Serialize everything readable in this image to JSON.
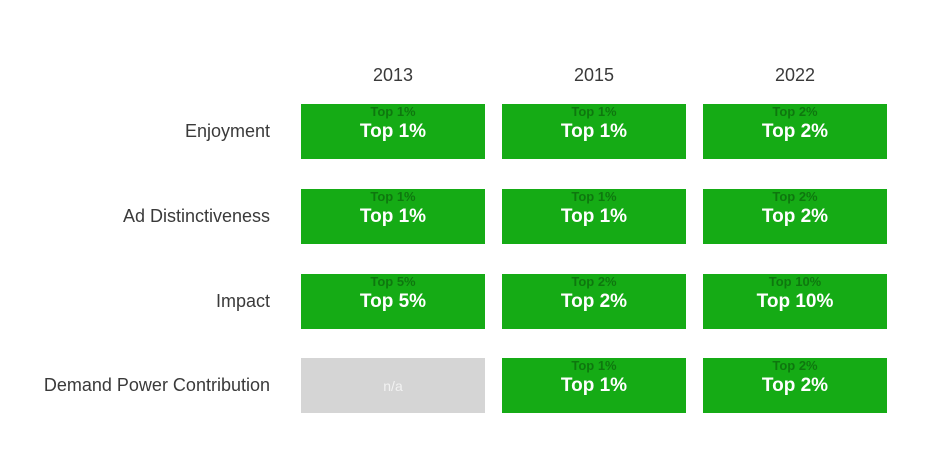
{
  "chart_data": {
    "type": "table",
    "title": "",
    "columns": [
      "2013",
      "2015",
      "2022"
    ],
    "rows": [
      {
        "label": "Enjoyment",
        "values": [
          "Top 1%",
          "Top 1%",
          "Top 2%"
        ],
        "statuses": [
          "green",
          "green",
          "green"
        ]
      },
      {
        "label": "Ad Distinctiveness",
        "values": [
          "Top 1%",
          "Top 1%",
          "Top 2%"
        ],
        "statuses": [
          "green",
          "green",
          "green"
        ]
      },
      {
        "label": "Impact",
        "values": [
          "Top 5%",
          "Top 2%",
          "Top 10%"
        ],
        "statuses": [
          "green",
          "green",
          "green"
        ]
      },
      {
        "label": "Demand Power Contribution",
        "values": [
          "n/a",
          "Top 1%",
          "Top 2%"
        ],
        "statuses": [
          "na",
          "green",
          "green"
        ]
      }
    ],
    "colors": {
      "positive_cell": "#15ab15",
      "na_cell": "#d5d5d5",
      "cell_text": "#ffffff",
      "na_text": "#f2f2f2",
      "heading_text": "#3a3a3a"
    },
    "layout": {
      "legend": "none",
      "grid": "off",
      "background": "#ffffff"
    }
  }
}
